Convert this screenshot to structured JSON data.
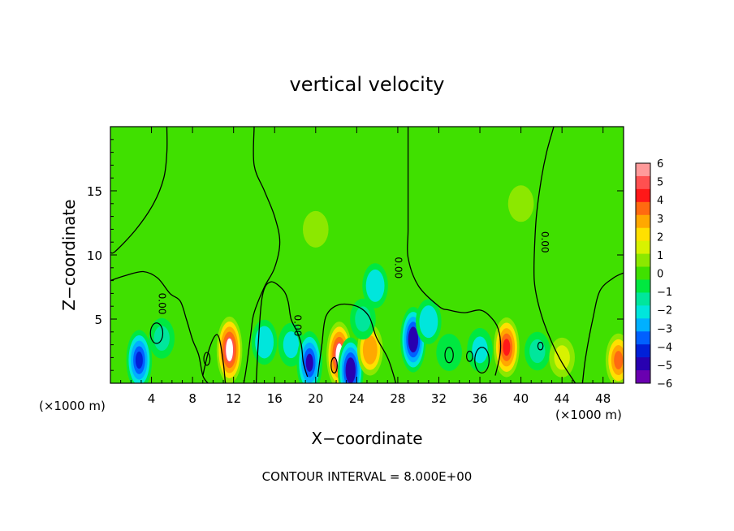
{
  "chart_data": {
    "type": "heatmap",
    "title": "vertical velocity",
    "xlabel": "X−coordinate",
    "ylabel": "Z−coordinate",
    "x_unit_left": "(×1000 m)",
    "x_unit_right": "(×1000 m)",
    "xlim": [
      0,
      50
    ],
    "ylim": [
      0,
      20
    ],
    "x_ticks": [
      4,
      8,
      12,
      16,
      20,
      24,
      28,
      32,
      36,
      40,
      44,
      48
    ],
    "y_ticks": [
      5,
      10,
      15
    ],
    "colorbar": {
      "min": -6,
      "max": 6,
      "labels": [
        "6",
        "5",
        "4",
        "3",
        "2",
        "1",
        "0",
        "−1",
        "−2",
        "−3",
        "−4",
        "−5",
        "−6"
      ],
      "colors": [
        "#ff9a9a",
        "#ff5050",
        "#ff1818",
        "#ff6a10",
        "#ffa800",
        "#ffe000",
        "#d8f200",
        "#8ce800",
        "#40e000",
        "#00e840",
        "#00e69c",
        "#00e6dc",
        "#00b0ff",
        "#0060ff",
        "#0020d8",
        "#2800b0",
        "#6a00b0"
      ]
    },
    "background_value": 0.2,
    "features": [
      {
        "x": 2.8,
        "z": 1.8,
        "w": -4.6
      },
      {
        "x": 5.0,
        "z": 3.5,
        "w": -1.5
      },
      {
        "x": 11.6,
        "z": 2.6,
        "w": 6.0
      },
      {
        "x": 15.0,
        "z": 3.2,
        "w": -2.2
      },
      {
        "x": 17.6,
        "z": 3.0,
        "w": -2.0
      },
      {
        "x": 19.4,
        "z": 1.6,
        "w": -5.0
      },
      {
        "x": 22.3,
        "z": 2.2,
        "w": 6.0
      },
      {
        "x": 23.4,
        "z": 1.0,
        "w": -5.5
      },
      {
        "x": 25.3,
        "z": 2.6,
        "w": 3.2
      },
      {
        "x": 24.6,
        "z": 5.0,
        "w": -1.6
      },
      {
        "x": 25.8,
        "z": 7.6,
        "w": -2.2
      },
      {
        "x": 29.5,
        "z": 3.4,
        "w": -5.4
      },
      {
        "x": 31.0,
        "z": 4.8,
        "w": -2.2
      },
      {
        "x": 33.0,
        "z": 2.4,
        "w": -1.0
      },
      {
        "x": 36.0,
        "z": 2.6,
        "w": -2.0
      },
      {
        "x": 38.6,
        "z": 2.8,
        "w": 4.5
      },
      {
        "x": 41.6,
        "z": 2.5,
        "w": -1.2
      },
      {
        "x": 44.0,
        "z": 2.0,
        "w": 1.4
      },
      {
        "x": 49.5,
        "z": 1.8,
        "w": 3.5
      },
      {
        "x": 20.0,
        "z": 12.0,
        "w": 0.9
      },
      {
        "x": 40.0,
        "z": 14.0,
        "w": 0.9
      }
    ],
    "contour_label": "0.00",
    "contour_label_positions": [
      {
        "x": 5.0,
        "z": 6.2
      },
      {
        "x": 18.2,
        "z": 4.5
      },
      {
        "x": 28.0,
        "z": 9.0
      },
      {
        "x": 42.3,
        "z": 11.0
      }
    ],
    "contour_lines": [
      [
        [
          5.5,
          20
        ],
        [
          5.5,
          18
        ],
        [
          5.2,
          16
        ],
        [
          4.2,
          14
        ],
        [
          2.5,
          12
        ],
        [
          0.5,
          10.3
        ],
        [
          0,
          10.2
        ]
      ],
      [
        [
          0,
          8.0
        ],
        [
          1.5,
          8.4
        ],
        [
          3.2,
          8.7
        ],
        [
          4.6,
          8.2
        ],
        [
          5.8,
          7.0
        ],
        [
          6.8,
          6.4
        ],
        [
          7.4,
          5.0
        ],
        [
          8.0,
          3.4
        ],
        [
          8.6,
          2.2
        ],
        [
          9.0,
          0.6
        ],
        [
          9.5,
          0
        ]
      ],
      [
        [
          9.0,
          0.6
        ],
        [
          9.6,
          2.6
        ],
        [
          10.2,
          3.7
        ],
        [
          10.6,
          3.5
        ],
        [
          11.0,
          1.6
        ],
        [
          11.2,
          0
        ]
      ],
      [
        [
          14.0,
          20
        ],
        [
          14.0,
          17.0
        ],
        [
          15.0,
          15.0
        ],
        [
          16.0,
          13.0
        ],
        [
          16.5,
          11.0
        ],
        [
          16.0,
          9.0
        ],
        [
          15.0,
          7.5
        ],
        [
          14.0,
          5.5
        ],
        [
          13.7,
          4.0
        ],
        [
          13.3,
          1.5
        ],
        [
          13.0,
          0
        ]
      ],
      [
        [
          14.2,
          0
        ],
        [
          14.4,
          3.0
        ],
        [
          14.8,
          6.8
        ],
        [
          15.6,
          7.9
        ],
        [
          16.8,
          7.3
        ],
        [
          17.3,
          6.4
        ],
        [
          17.6,
          5.0
        ],
        [
          18.2,
          4.0
        ],
        [
          18.6,
          3.0
        ],
        [
          18.8,
          1.6
        ],
        [
          19.2,
          0.5
        ]
      ],
      [
        [
          20.2,
          0.5
        ],
        [
          20.6,
          3.0
        ],
        [
          21.0,
          5.2
        ],
        [
          22.2,
          6.1
        ],
        [
          24.0,
          6.0
        ],
        [
          25.2,
          5.2
        ],
        [
          25.9,
          3.6
        ],
        [
          27.0,
          2.0
        ],
        [
          27.6,
          0.6
        ],
        [
          27.8,
          0
        ]
      ],
      [
        [
          29.0,
          20
        ],
        [
          29.0,
          16.0
        ],
        [
          29.0,
          12.0
        ],
        [
          29.0,
          9.8
        ],
        [
          30.0,
          7.6
        ],
        [
          32.0,
          6.0
        ],
        [
          33.0,
          5.7
        ],
        [
          34.5,
          5.5
        ],
        [
          36.0,
          5.7
        ],
        [
          37.0,
          5.2
        ],
        [
          37.8,
          4.2
        ],
        [
          38.0,
          2.5
        ],
        [
          37.5,
          0.6
        ]
      ],
      [
        [
          43.2,
          20
        ],
        [
          42.5,
          18.0
        ],
        [
          42.0,
          16.0
        ],
        [
          41.5,
          13.0
        ],
        [
          41.3,
          10.0
        ],
        [
          41.3,
          8.0
        ],
        [
          41.6,
          6.5
        ],
        [
          42.2,
          4.8
        ],
        [
          43.0,
          3.2
        ],
        [
          44.0,
          1.6
        ],
        [
          45.3,
          0
        ]
      ],
      [
        [
          46.0,
          0
        ],
        [
          46.3,
          2.0
        ],
        [
          47.0,
          5.0
        ],
        [
          47.7,
          7.2
        ],
        [
          49.0,
          8.2
        ],
        [
          50.0,
          8.6
        ]
      ]
    ],
    "contour_loops": [
      {
        "x": 4.5,
        "z": 3.9,
        "rx": 0.6,
        "rz": 0.8
      },
      {
        "x": 9.4,
        "z": 1.9,
        "rx": 0.3,
        "rz": 0.5
      },
      {
        "x": 21.8,
        "z": 1.4,
        "rx": 0.3,
        "rz": 0.6
      },
      {
        "x": 33.0,
        "z": 2.2,
        "rx": 0.4,
        "rz": 0.6
      },
      {
        "x": 35.0,
        "z": 2.1,
        "rx": 0.3,
        "rz": 0.4
      },
      {
        "x": 36.2,
        "z": 1.8,
        "rx": 0.7,
        "rz": 1.0
      },
      {
        "x": 41.9,
        "z": 2.9,
        "rx": 0.25,
        "rz": 0.3
      }
    ]
  },
  "footer": {
    "contour_interval": "CONTOUR INTERVAL = 8.000E+00"
  }
}
